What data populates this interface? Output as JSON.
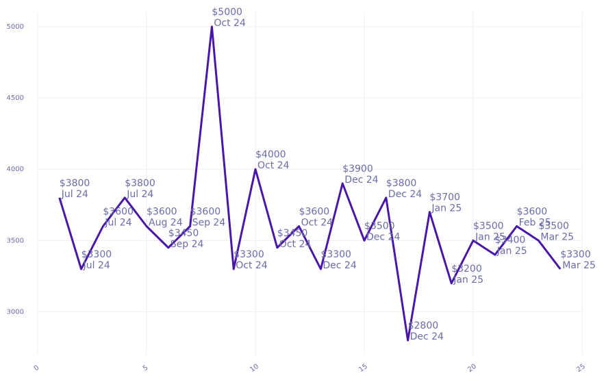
{
  "chart_data": {
    "type": "line",
    "title": "",
    "xlabel": "",
    "ylabel": "",
    "grid": true,
    "xlim": [
      0,
      25
    ],
    "ylim": [
      2700,
      5100
    ],
    "xticks": [
      0,
      5,
      10,
      15,
      20,
      25
    ],
    "yticks": [
      3000,
      3500,
      4000,
      4500,
      5000
    ],
    "line_color": "#4a16a8",
    "label_color": "#6b6ba8",
    "series": [
      {
        "name": "price",
        "points": [
          {
            "x": 1,
            "y": 3800,
            "price": "$3800",
            "date": "Jul 24"
          },
          {
            "x": 2,
            "y": 3300,
            "price": "$3300",
            "date": "Jul 24"
          },
          {
            "x": 3,
            "y": 3600,
            "price": "$3600",
            "date": "Jul 24"
          },
          {
            "x": 4,
            "y": 3800,
            "price": "$3800",
            "date": "Jul 24"
          },
          {
            "x": 5,
            "y": 3600,
            "price": "$3600",
            "date": "Aug 24"
          },
          {
            "x": 6,
            "y": 3450,
            "price": "$3450",
            "date": "Sep 24"
          },
          {
            "x": 7,
            "y": 3600,
            "price": "$3600",
            "date": "Sep 24"
          },
          {
            "x": 8,
            "y": 5000,
            "price": "$5000",
            "date": "Oct 24"
          },
          {
            "x": 9,
            "y": 3300,
            "price": "$3300",
            "date": "Oct 24"
          },
          {
            "x": 10,
            "y": 4000,
            "price": "$4000",
            "date": "Oct 24"
          },
          {
            "x": 11,
            "y": 3450,
            "price": "$3450",
            "date": "Oct 24"
          },
          {
            "x": 12,
            "y": 3600,
            "price": "$3600",
            "date": "Oct 24"
          },
          {
            "x": 13,
            "y": 3300,
            "price": "$3300",
            "date": "Dec 24"
          },
          {
            "x": 14,
            "y": 3900,
            "price": "$3900",
            "date": "Dec 24"
          },
          {
            "x": 15,
            "y": 3500,
            "price": "$3500",
            "date": "Dec 24"
          },
          {
            "x": 16,
            "y": 3800,
            "price": "$3800",
            "date": "Dec 24"
          },
          {
            "x": 17,
            "y": 2800,
            "price": "$2800",
            "date": "Dec 24"
          },
          {
            "x": 18,
            "y": 3700,
            "price": "$3700",
            "date": "Jan 25"
          },
          {
            "x": 19,
            "y": 3200,
            "price": "$3200",
            "date": "Jan 25"
          },
          {
            "x": 20,
            "y": 3500,
            "price": "$3500",
            "date": "Jan 25"
          },
          {
            "x": 21,
            "y": 3400,
            "price": "$3400",
            "date": "Jan 25"
          },
          {
            "x": 22,
            "y": 3600,
            "price": "$3600",
            "date": "Feb 25"
          },
          {
            "x": 23,
            "y": 3500,
            "price": "$3500",
            "date": "Mar 25"
          },
          {
            "x": 24,
            "y": 3300,
            "price": "$3300",
            "date": "Mar 25"
          }
        ]
      }
    ]
  }
}
